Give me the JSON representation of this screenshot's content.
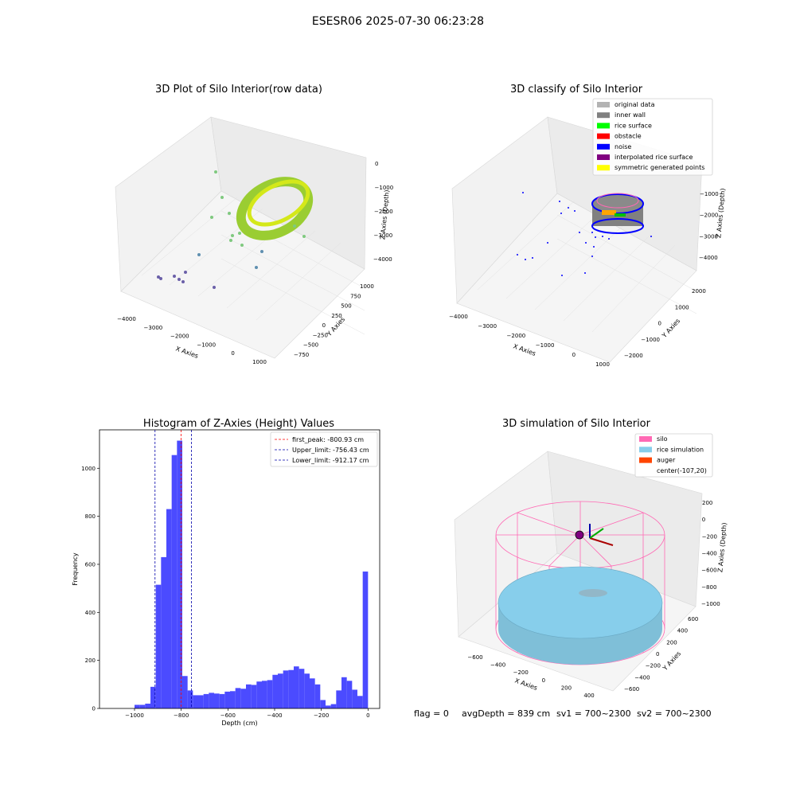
{
  "figure": {
    "suptitle": "ESESR06 2025-07-30 06:23:28",
    "status": {
      "flag": "flag = 0",
      "avg_depth": "avgDepth = 839 cm",
      "sv1": "sv1 = 700~2300",
      "sv2": "sv2 = 700~2300"
    }
  },
  "panel_raw": {
    "title": "3D Plot of Silo Interior(row data)",
    "xlabel": "X Axies",
    "ylabel": "Y Axies",
    "zlabel": "Z Axies (Depth)",
    "x_ticks": [
      "−4000",
      "−3000",
      "−2000",
      "−1000",
      "0",
      "1000"
    ],
    "y_ticks": [
      "−750",
      "−500",
      "−250",
      "0",
      "250",
      "500",
      "750",
      "1000"
    ],
    "z_ticks": [
      "0",
      "−1000",
      "−2000",
      "−3000",
      "−4000"
    ]
  },
  "panel_classify": {
    "title": "3D classify of Silo Interior",
    "xlabel": "X Axies",
    "ylabel": "Y Axies",
    "zlabel": "Z Axies (Depth)",
    "x_ticks": [
      "−4000",
      "−3000",
      "−2000",
      "−1000",
      "0",
      "1000"
    ],
    "y_ticks": [
      "−2000",
      "−1000",
      "0",
      "1000",
      "2000"
    ],
    "z_ticks": [
      "−1000",
      "−2000",
      "−3000",
      "−4000"
    ],
    "legend": [
      {
        "label": "original data",
        "color": "#b3b3b3"
      },
      {
        "label": "inner wall",
        "color": "#808080"
      },
      {
        "label": "rice surface",
        "color": "#00ff00"
      },
      {
        "label": "obstacle",
        "color": "#ff0000"
      },
      {
        "label": "noise",
        "color": "#0000ff"
      },
      {
        "label": "interpolated rice surface",
        "color": "#800080"
      },
      {
        "label": "symmetric generated points",
        "color": "#ffff00"
      }
    ]
  },
  "panel_sim": {
    "title": "3D simulation of Silo Interior",
    "xlabel": "X Axies",
    "ylabel": "Y Axies",
    "zlabel": "Z Axies (Depth)",
    "x_ticks": [
      "−600",
      "−400",
      "−200",
      "0",
      "200",
      "400"
    ],
    "y_ticks": [
      "−600",
      "−400",
      "−200",
      "0",
      "200",
      "400",
      "600"
    ],
    "z_ticks": [
      "200",
      "0",
      "−200",
      "−400",
      "−600",
      "−800",
      "−1000"
    ],
    "legend": [
      {
        "label": "silo",
        "color": "#ff69b4"
      },
      {
        "label": "rice simulation",
        "color": "#87ceeb"
      },
      {
        "label": "auger",
        "color": "#ff4500"
      },
      {
        "label": "center(-107,20)",
        "color": ""
      }
    ]
  },
  "chart_data": {
    "type": "bar",
    "title": "Histogram of Z-Axies (Height) Values",
    "xlabel": "Depth (cm)",
    "ylabel": "Frequency",
    "xlim": [
      -1150,
      50
    ],
    "ylim": [
      0,
      1160
    ],
    "bin_width": 20,
    "bar_color": "#4b4bff",
    "x_ticks": [
      -1000,
      -800,
      -600,
      -400,
      -200,
      0
    ],
    "x_tick_labels": [
      "−1000",
      "−800",
      "−600",
      "−400",
      "−200",
      "0"
    ],
    "y_ticks": [
      0,
      200,
      400,
      600,
      800,
      1000
    ],
    "y_tick_labels": [
      "0",
      "200",
      "400",
      "600",
      "800",
      "1000"
    ],
    "bins": [
      {
        "x": -1000,
        "y": 15
      },
      {
        "x": -980,
        "y": 15
      },
      {
        "x": -960,
        "y": 20
      },
      {
        "x": -940,
        "y": 90
      },
      {
        "x": -920,
        "y": 515
      },
      {
        "x": -900,
        "y": 630
      },
      {
        "x": -880,
        "y": 830
      },
      {
        "x": -860,
        "y": 1055
      },
      {
        "x": -840,
        "y": 1115
      },
      {
        "x": -820,
        "y": 135
      },
      {
        "x": -800,
        "y": 75
      },
      {
        "x": -780,
        "y": 55
      },
      {
        "x": -760,
        "y": 55
      },
      {
        "x": -740,
        "y": 60
      },
      {
        "x": -720,
        "y": 65
      },
      {
        "x": -700,
        "y": 62
      },
      {
        "x": -680,
        "y": 60
      },
      {
        "x": -660,
        "y": 70
      },
      {
        "x": -640,
        "y": 72
      },
      {
        "x": -620,
        "y": 85
      },
      {
        "x": -600,
        "y": 82
      },
      {
        "x": -580,
        "y": 100
      },
      {
        "x": -560,
        "y": 98
      },
      {
        "x": -540,
        "y": 112
      },
      {
        "x": -520,
        "y": 115
      },
      {
        "x": -500,
        "y": 118
      },
      {
        "x": -480,
        "y": 140
      },
      {
        "x": -460,
        "y": 145
      },
      {
        "x": -440,
        "y": 158
      },
      {
        "x": -420,
        "y": 160
      },
      {
        "x": -400,
        "y": 175
      },
      {
        "x": -380,
        "y": 165
      },
      {
        "x": -360,
        "y": 145
      },
      {
        "x": -340,
        "y": 125
      },
      {
        "x": -320,
        "y": 100
      },
      {
        "x": -300,
        "y": 35
      },
      {
        "x": -280,
        "y": 12
      },
      {
        "x": -260,
        "y": 18
      },
      {
        "x": -240,
        "y": 75
      },
      {
        "x": -220,
        "y": 130
      },
      {
        "x": -200,
        "y": 115
      },
      {
        "x": -180,
        "y": 78
      },
      {
        "x": -160,
        "y": 52
      },
      {
        "x": -140,
        "y": 570
      }
    ],
    "vlines": [
      {
        "label": "first_peak: -800.93 cm",
        "x": -800.93,
        "color": "#ff0000"
      },
      {
        "label": "Upper_limit: -756.43 cm",
        "x": -756.43,
        "color": "#0000aa"
      },
      {
        "label": "Lower_limit: -912.17 cm",
        "x": -912.17,
        "color": "#0000aa"
      }
    ],
    "legend_position": "upper right",
    "grid": false
  }
}
